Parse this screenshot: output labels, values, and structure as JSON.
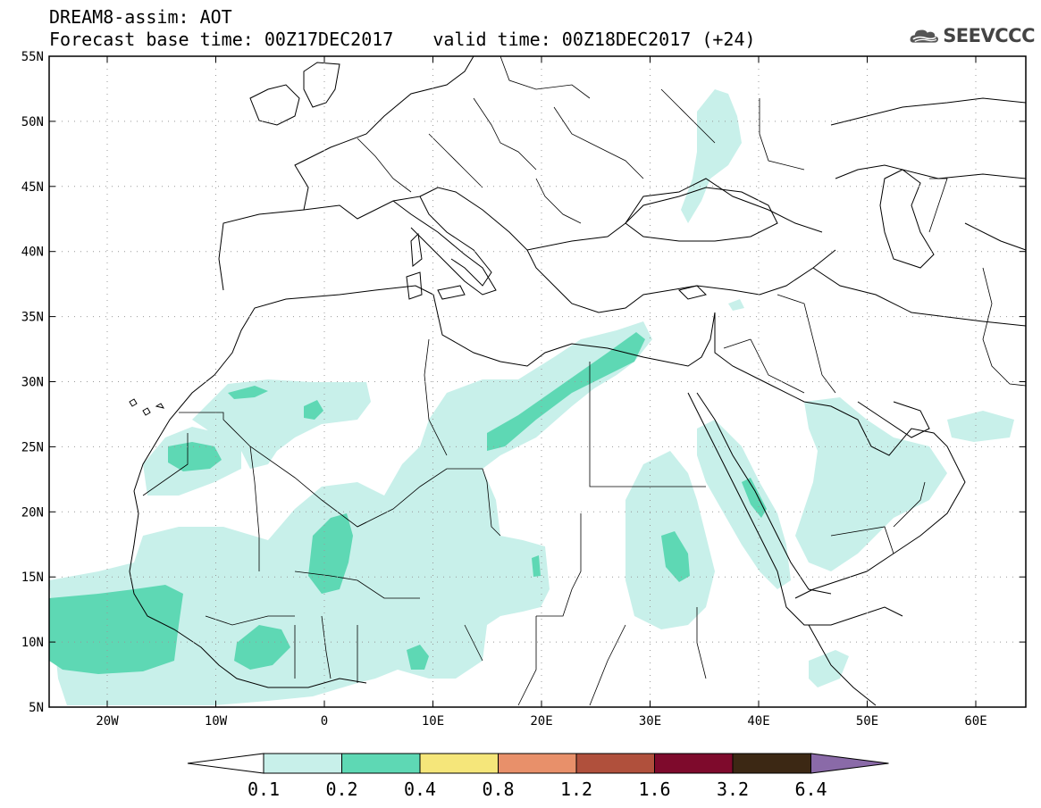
{
  "header": {
    "title": "DREAM8-assim: AOT",
    "base_time": "Forecast base time: 00Z17DEC2017",
    "valid_time": "valid time: 00Z18DEC2017 (+24)",
    "logo_text": "SEEVCCC"
  },
  "axes": {
    "lat_labels": [
      "55N",
      "50N",
      "45N",
      "40N",
      "35N",
      "30N",
      "25N",
      "20N",
      "15N",
      "10N",
      "5N"
    ],
    "lon_labels": [
      "20W",
      "10W",
      "0",
      "10E",
      "20E",
      "30E",
      "40E",
      "50E",
      "60E"
    ]
  },
  "colorbar": {
    "labels": [
      "0.1",
      "0.2",
      "0.4",
      "0.8",
      "1.2",
      "1.6",
      "3.2",
      "6.4"
    ],
    "colors": [
      "#ffffff",
      "#c8f0ea",
      "#5ed8b4",
      "#f5e67a",
      "#e8906a",
      "#b0503c",
      "#7e0a2c",
      "#3c2814",
      "#8a6aa8"
    ]
  },
  "map": {
    "field": "AOT",
    "fill_colors": {
      "low": "#c8f0ea",
      "mid": "#5ed8b4"
    }
  }
}
